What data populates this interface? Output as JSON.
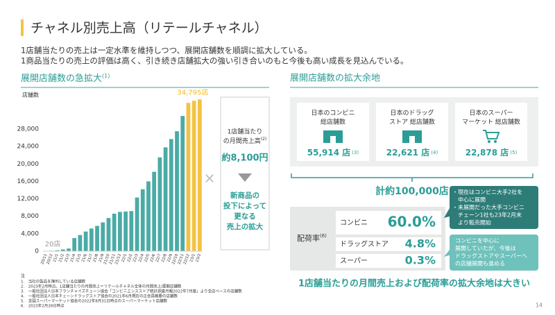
{
  "header": {
    "title": "チャネル別売上高（リテールチャネル）"
  },
  "intro": [
    "1店舗当たりの売上は一定水準を維持しつつ、展開店舗数を順調に拡大している。",
    "1商品当たりの売上の評価は高く、引き続き店舗拡大の強い引き合いのもと今後も高い成長を見込んでいる。"
  ],
  "chart_data": {
    "type": "bar",
    "title": "展開店舗数の急拡大",
    "title_note": "(1)",
    "y_label": "店舗数",
    "categories": [
      "20/11",
      "20/12",
      "21/1",
      "21/2",
      "21/3",
      "21/4",
      "21/5",
      "21/6",
      "21/7",
      "21/8",
      "21/9",
      "21/10",
      "21/11",
      "21/12",
      "22/1",
      "22/2",
      "22/3",
      "22/4",
      "22/5",
      "22/6",
      "22/7",
      "22/8",
      "22/9",
      "22/10",
      "22/11",
      "22/12",
      "23/1",
      "23/2"
    ],
    "values": [
      20,
      100,
      200,
      400,
      600,
      3000,
      3700,
      4500,
      5200,
      5800,
      6600,
      7600,
      8600,
      9000,
      9100,
      9200,
      12300,
      14200,
      16000,
      18200,
      21500,
      23800,
      25700,
      27500,
      31000,
      34000,
      34500,
      34795
    ],
    "value_labels": [
      "20店",
      null,
      null,
      null,
      null,
      null,
      null,
      null,
      null,
      null,
      null,
      null,
      null,
      null,
      null,
      null,
      null,
      null,
      null,
      null,
      null,
      null,
      null,
      null,
      null,
      null,
      null,
      "34,795店"
    ],
    "colors": [
      "#4aaba6",
      "#4aaba6",
      "#4aaba6",
      "#4aaba6",
      "#4aaba6",
      "#4aaba6",
      "#4aaba6",
      "#4aaba6",
      "#4aaba6",
      "#4aaba6",
      "#4aaba6",
      "#4aaba6",
      "#4aaba6",
      "#4aaba6",
      "#4aaba6",
      "#4aaba6",
      "#4aaba6",
      "#4aaba6",
      "#4aaba6",
      "#4aaba6",
      "#4aaba6",
      "#4aaba6",
      "#4aaba6",
      "#4aaba6",
      "#4aaba6",
      "#f5c244",
      "#f5c244",
      "#f5c244"
    ],
    "ylim": [
      0,
      35000
    ],
    "yticks": [
      0,
      {
        "value": 4000,
        "label": "4,000"
      },
      {
        "value": 8000,
        "label": "8,000"
      },
      {
        "value": 12000,
        "label": "12,000"
      },
      {
        "value": 16000,
        "label": "16,000"
      },
      {
        "value": 20000,
        "label": "20,000"
      },
      {
        "value": 24000,
        "label": "24,000"
      },
      {
        "value": 28000,
        "label": "28,000"
      }
    ],
    "grid": false
  },
  "middle": {
    "label": [
      "1店舗当たり",
      "の月間売上高"
    ],
    "label_note": "(2)",
    "value": "約8,100円",
    "result": [
      "新商品の",
      "投下によって",
      "更なる",
      "売上の拡大"
    ]
  },
  "right": {
    "title": "展開店舗数の拡大余地",
    "stores": [
      {
        "label": [
          "日本のコンビニ",
          "総店舗数"
        ],
        "value": "55,914 店",
        "note": "(3)"
      },
      {
        "label": [
          "日本のドラッグ",
          "ストア 総店舗数"
        ],
        "value": "22,621 店",
        "note": "(4)"
      },
      {
        "label": [
          "日本のスーパー",
          "マーケット 総店舗数"
        ],
        "value": "22,878 店",
        "note": "(5)"
      }
    ],
    "total": "計約100,000店",
    "rate_label": "配荷率",
    "rate_note": "(6)",
    "rates": [
      {
        "name": "コンビニ",
        "value": "60.0%"
      },
      {
        "name": "ドラッグストア",
        "value": "4.8%"
      },
      {
        "name": "スーパー",
        "value": "0.3%"
      }
    ],
    "callout1": [
      "・現在はコンビニ大手2社を",
      "　中心に展開",
      "・未展開だった大手コンビニ",
      "　チェーン1社も23年2月末",
      "　より販売開始"
    ],
    "callout2": [
      "コンビニを中心に",
      "展開していたが、今後は",
      "ドラッグストアやスーパーへ",
      "の店舗展開も進める"
    ],
    "conclusion": "1店舗当たりの月間売上および配荷率の拡大余地は大きい"
  },
  "notes": {
    "heading": "注",
    "items": [
      "1.　当社の製品を陳列している店舗数",
      "2.　2023年2月時点。1店舗当たりの月間売上＝リテールチャネル全体の月間売上/展開店舗数",
      "3.　一般社団法人日本フランチャイズチェーン協会「コンビニエンスストア統計調査月報2022年7月度」より全店ベースの店舗数",
      "4.　一般社団法人日本チェーンドラッグストア協会の2021年6月現在の正会員概要の店舗数",
      "5.　全国スーパーマーケット協会の2022年8月31日時点のスーパーマーケット店舗数",
      "6.　2023年2月28日時点"
    ]
  },
  "page": "14"
}
